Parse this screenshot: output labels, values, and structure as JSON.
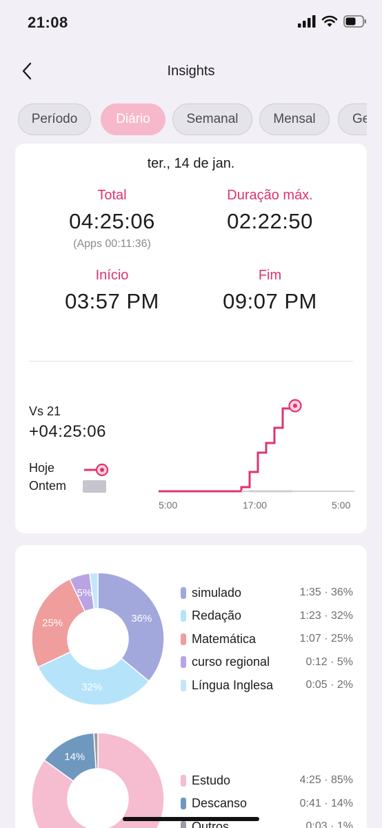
{
  "status": {
    "time": "21:08"
  },
  "header": {
    "title": "Insights"
  },
  "tabs": [
    {
      "label": "Período"
    },
    {
      "label": "Diário",
      "active": true
    },
    {
      "label": "Semanal"
    },
    {
      "label": "Mensal"
    },
    {
      "label": "Ge"
    }
  ],
  "summary": {
    "date": "ter., 14 de jan.",
    "total_label": "Total",
    "total_value": "04:25:06",
    "total_sub": "(Apps 00:11:36)",
    "max_label": "Duração máx.",
    "max_value": "02:22:50",
    "start_label": "Início",
    "start_value": "03:57 PM",
    "end_label": "Fim",
    "end_value": "09:07 PM"
  },
  "comparison": {
    "vs_label": "Vs 21",
    "vs_value": "+04:25:06",
    "today_label": "Hoje",
    "yesterday_label": "Ontem",
    "x_ticks": [
      "5:00",
      "17:00",
      "5:00"
    ]
  },
  "subjects": {
    "items": [
      {
        "name": "simulado",
        "value": "1:35 · 36%",
        "percent": 36,
        "color": "#a2a8dc",
        "label": "36%"
      },
      {
        "name": "Redação",
        "value": "1:23 · 32%",
        "percent": 32,
        "color": "#b5e4fa",
        "label": "32%"
      },
      {
        "name": "Matemática",
        "value": "1:07 · 25%",
        "percent": 25,
        "color": "#ef9d9d",
        "label": "25%"
      },
      {
        "name": "curso regional",
        "value": "0:12 · 5%",
        "percent": 5,
        "color": "#b9a3e3",
        "label": "5%"
      },
      {
        "name": "Língua Inglesa",
        "value": "0:05 · 2%",
        "percent": 2,
        "color": "#c4e6fb",
        "label": ""
      }
    ]
  },
  "activity": {
    "items": [
      {
        "name": "Estudo",
        "value": "4:25 · 85%",
        "percent": 85,
        "color": "#f6bcd0",
        "label": ""
      },
      {
        "name": "Descanso",
        "value": "0:41 · 14%",
        "percent": 14,
        "color": "#6f98bf",
        "label": "14%"
      },
      {
        "name": "Outros",
        "value": "0:03 · 1%",
        "percent": 1,
        "color": "#9c9ca2",
        "label": ""
      }
    ]
  },
  "colors": {
    "accent": "#e0336d",
    "tab_active": "#f7b8cc"
  }
}
